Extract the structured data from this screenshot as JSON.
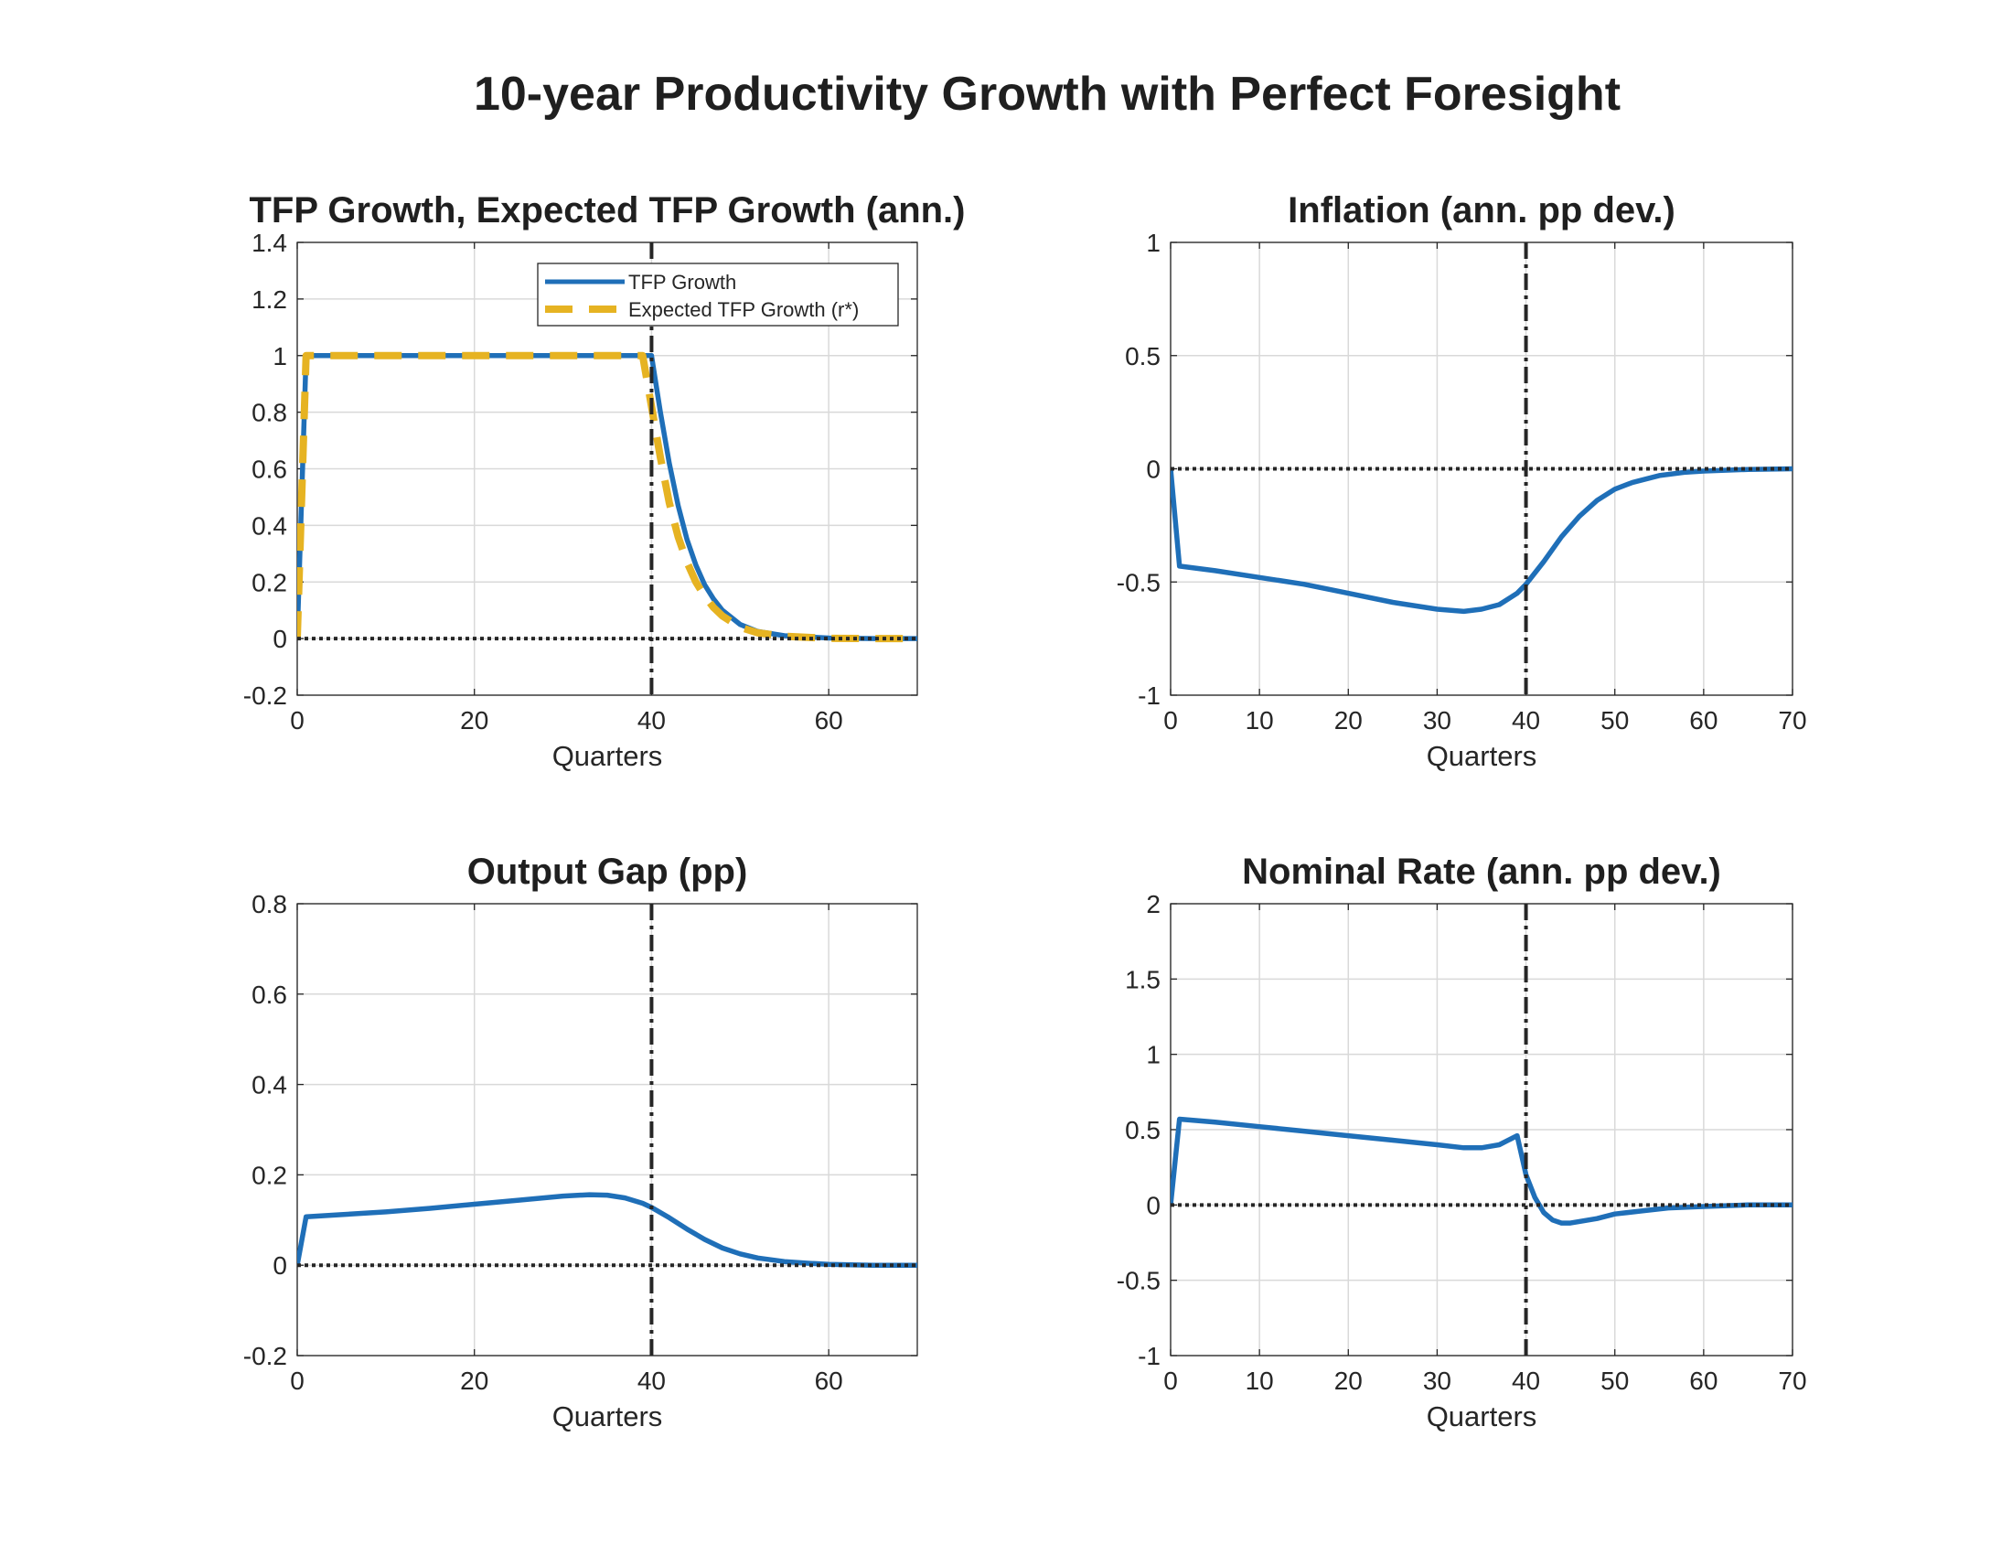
{
  "title": "10-year Productivity Growth with Perfect Foresight",
  "colors": {
    "blue": "#1f6fb8",
    "gold": "#e6b322"
  },
  "chart_data": [
    {
      "id": "tfp",
      "type": "line",
      "title": "TFP Growth, Expected TFP Growth (ann.)",
      "xlabel": "Quarters",
      "ylabel": "",
      "xlim": [
        0,
        70
      ],
      "ylim": [
        -0.2,
        1.4
      ],
      "xticks": [
        0,
        20,
        40,
        60
      ],
      "yticks": [
        -0.2,
        0,
        0.2,
        0.4,
        0.6,
        0.8,
        1,
        1.2,
        1.4
      ],
      "ytick_labels": [
        "-0.2",
        "0",
        "0.2",
        "0.4",
        "0.6",
        "0.8",
        "1",
        "1.2",
        "1.4"
      ],
      "grid": true,
      "legend": "top-right",
      "vline_x": 40,
      "hline_y": 0,
      "series": [
        {
          "name": "TFP Growth",
          "color": "#1f6fb8",
          "style": "solid",
          "x": [
            0,
            1,
            40,
            41,
            42,
            43,
            44,
            45,
            46,
            47,
            48,
            50,
            52,
            55,
            60,
            65,
            70
          ],
          "y": [
            0,
            1,
            1,
            0.8,
            0.62,
            0.47,
            0.35,
            0.26,
            0.19,
            0.14,
            0.1,
            0.05,
            0.025,
            0.01,
            0.002,
            0,
            0
          ]
        },
        {
          "name": "Expected TFP Growth (r*)",
          "color": "#e6b322",
          "style": "dashed",
          "x": [
            0,
            1,
            39,
            40,
            41,
            42,
            43,
            44,
            45,
            46,
            47,
            48,
            50,
            52,
            55,
            60,
            65,
            70
          ],
          "y": [
            0,
            1,
            1,
            0.82,
            0.64,
            0.48,
            0.36,
            0.27,
            0.2,
            0.15,
            0.11,
            0.08,
            0.04,
            0.02,
            0.008,
            0.001,
            0,
            0
          ]
        }
      ]
    },
    {
      "id": "inflation",
      "type": "line",
      "title": "Inflation (ann. pp dev.)",
      "xlabel": "Quarters",
      "ylabel": "",
      "xlim": [
        0,
        70
      ],
      "ylim": [
        -1,
        1
      ],
      "xticks": [
        0,
        10,
        20,
        30,
        40,
        50,
        60,
        70
      ],
      "yticks": [
        -1,
        -0.5,
        0,
        0.5,
        1
      ],
      "ytick_labels": [
        "-1",
        "-0.5",
        "0",
        "0.5",
        "1"
      ],
      "grid": true,
      "vline_x": 40,
      "hline_y": 0,
      "series": [
        {
          "name": "",
          "color": "#1f6fb8",
          "style": "solid",
          "x": [
            0,
            1,
            5,
            10,
            15,
            20,
            25,
            30,
            33,
            35,
            37,
            39,
            40,
            42,
            44,
            46,
            48,
            50,
            52,
            55,
            58,
            60,
            65,
            70
          ],
          "y": [
            0,
            -0.43,
            -0.45,
            -0.48,
            -0.51,
            -0.55,
            -0.59,
            -0.62,
            -0.63,
            -0.62,
            -0.6,
            -0.55,
            -0.51,
            -0.41,
            -0.3,
            -0.21,
            -0.14,
            -0.09,
            -0.06,
            -0.03,
            -0.015,
            -0.01,
            -0.003,
            0
          ]
        }
      ]
    },
    {
      "id": "output_gap",
      "type": "line",
      "title": "Output Gap (pp)",
      "xlabel": "Quarters",
      "ylabel": "",
      "xlim": [
        0,
        70
      ],
      "ylim": [
        -0.2,
        0.8
      ],
      "xticks": [
        0,
        20,
        40,
        60
      ],
      "yticks": [
        -0.2,
        0,
        0.2,
        0.4,
        0.6,
        0.8
      ],
      "ytick_labels": [
        "-0.2",
        "0",
        "0.2",
        "0.4",
        "0.6",
        "0.8"
      ],
      "grid": true,
      "vline_x": 40,
      "hline_y": 0,
      "series": [
        {
          "name": "",
          "color": "#1f6fb8",
          "style": "solid",
          "x": [
            0,
            1,
            5,
            10,
            15,
            20,
            25,
            30,
            33,
            35,
            37,
            39,
            40,
            42,
            44,
            46,
            48,
            50,
            52,
            55,
            58,
            60,
            65,
            70
          ],
          "y": [
            0,
            0.107,
            0.112,
            0.118,
            0.126,
            0.135,
            0.144,
            0.153,
            0.156,
            0.155,
            0.149,
            0.137,
            0.128,
            0.105,
            0.08,
            0.057,
            0.038,
            0.025,
            0.016,
            0.008,
            0.004,
            0.002,
            0,
            0
          ]
        }
      ]
    },
    {
      "id": "nominal_rate",
      "type": "line",
      "title": "Nominal Rate (ann. pp dev.)",
      "xlabel": "Quarters",
      "ylabel": "",
      "xlim": [
        0,
        70
      ],
      "ylim": [
        -1,
        2
      ],
      "xticks": [
        0,
        10,
        20,
        30,
        40,
        50,
        60,
        70
      ],
      "yticks": [
        -1,
        -0.5,
        0,
        0.5,
        1,
        1.5,
        2
      ],
      "ytick_labels": [
        "-1",
        "-0.5",
        "0",
        "0.5",
        "1",
        "1.5",
        "2"
      ],
      "grid": true,
      "vline_x": 40,
      "hline_y": 0,
      "series": [
        {
          "name": "",
          "color": "#1f6fb8",
          "style": "solid",
          "x": [
            0,
            1,
            5,
            10,
            15,
            20,
            25,
            30,
            33,
            35,
            37,
            39,
            40,
            41,
            42,
            43,
            44,
            45,
            46,
            48,
            50,
            53,
            56,
            60,
            65,
            70
          ],
          "y": [
            0,
            0.57,
            0.55,
            0.52,
            0.49,
            0.46,
            0.43,
            0.4,
            0.38,
            0.38,
            0.4,
            0.46,
            0.2,
            0.05,
            -0.05,
            -0.1,
            -0.12,
            -0.12,
            -0.11,
            -0.09,
            -0.06,
            -0.04,
            -0.02,
            -0.01,
            0,
            0
          ]
        }
      ]
    }
  ]
}
